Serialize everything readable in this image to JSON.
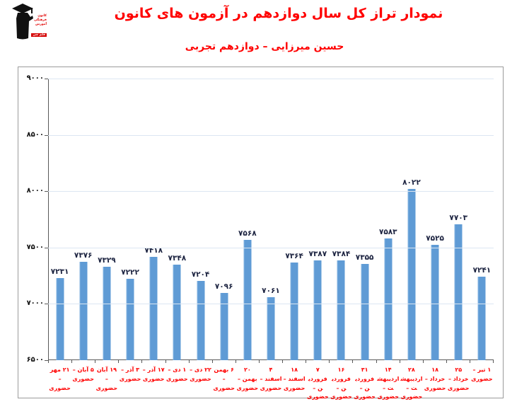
{
  "header": {
    "title": "نمودار تراز کل سال دوازدهم در آزمون های کانون",
    "subtitle": "حسین میرزایی – دوازدهم تجربی",
    "logo": {
      "lines": [
        "کانون",
        "فرهنگی",
        "آموزش"
      ],
      "badge": "قلم چی"
    }
  },
  "chart_data": {
    "type": "bar",
    "title": "نمودار تراز کل سال دوازدهم در آزمون های کانون",
    "subtitle": "حسین میرزایی – دوازدهم تجربی",
    "categories": [
      "۲۱ مهر – حضوری",
      "۵ آبان – حضوری",
      "۱۹ آبان – حضوری",
      "۳ آذر – حضوری",
      "۱۷ آذر – حضوری",
      "۱ دی – حضوری",
      "۲۲ دی – حضوری",
      "۶ بهمن – حضوری",
      "۲۰ بهمن – حضوری",
      "۴ اسفند – حضوری",
      "۱۸ اسفند – حضوری",
      "۷ فروردین – حضوری",
      "۱۶ فروردین – حضوری",
      "۳۱ فروردین – حضوری",
      "۱۴ اردیبهشت – حضوری",
      "۲۸ اردیبهشت – حضوری",
      "۱۸ خرداد – حضوری",
      "۲۵ خرداد – حضوری",
      "۱ تیر – حضوری"
    ],
    "values": [
      7231,
      7376,
      7329,
      7222,
      7418,
      7348,
      7204,
      7096,
      7568,
      7061,
      7364,
      7387,
      7384,
      7355,
      7583,
      8022,
      7525,
      7703,
      7241
    ],
    "xlabel": "",
    "ylabel": "",
    "ylim": [
      6500,
      9000
    ],
    "yticks": [
      6500,
      7000,
      7500,
      8000,
      8500,
      9000
    ],
    "grid": true,
    "legend": "none",
    "digit_style": "persian",
    "colors": {
      "bar": "#5f9bd5",
      "bar_edge": "#84b4e2",
      "value_label": "#1c2340",
      "category_label": "#ff0000",
      "title": "#ff0000",
      "gridline": "#dce6f2",
      "axis": "#595959",
      "chart_border": "#9b9b9b"
    }
  }
}
